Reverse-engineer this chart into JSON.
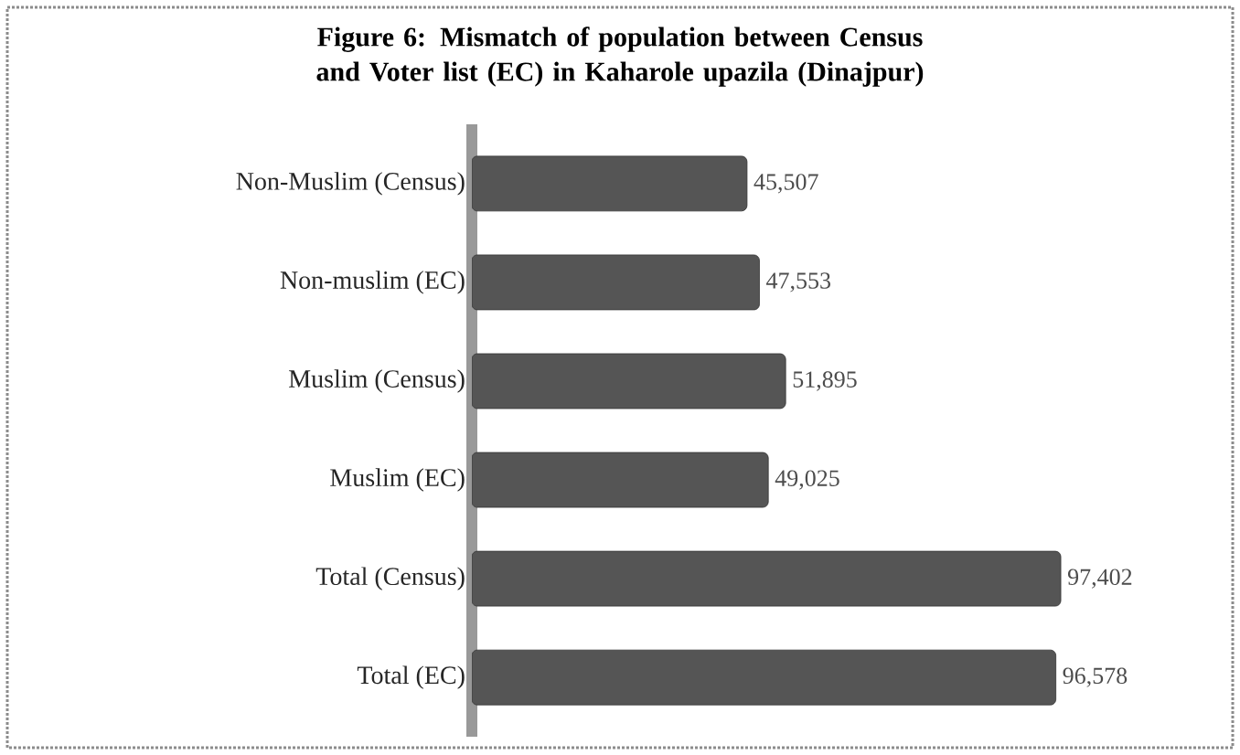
{
  "chart_data": {
    "type": "bar",
    "orientation": "horizontal",
    "title": "Figure 6: Mismatch of population between Census and Voter list (EC) in Kaharole upazila (Dinajpur)",
    "categories": [
      "Non-Muslim (Census)",
      "Non-muslim (EC)",
      "Muslim (Census)",
      "Muslim (EC)",
      "Total (Census)",
      "Total (EC)"
    ],
    "values": [
      45507,
      47553,
      51895,
      49025,
      97402,
      96578
    ],
    "value_labels": [
      "45,507",
      "47,553",
      "51,895",
      "49,025",
      "97,402",
      "96,578"
    ],
    "color": "#555555"
  }
}
